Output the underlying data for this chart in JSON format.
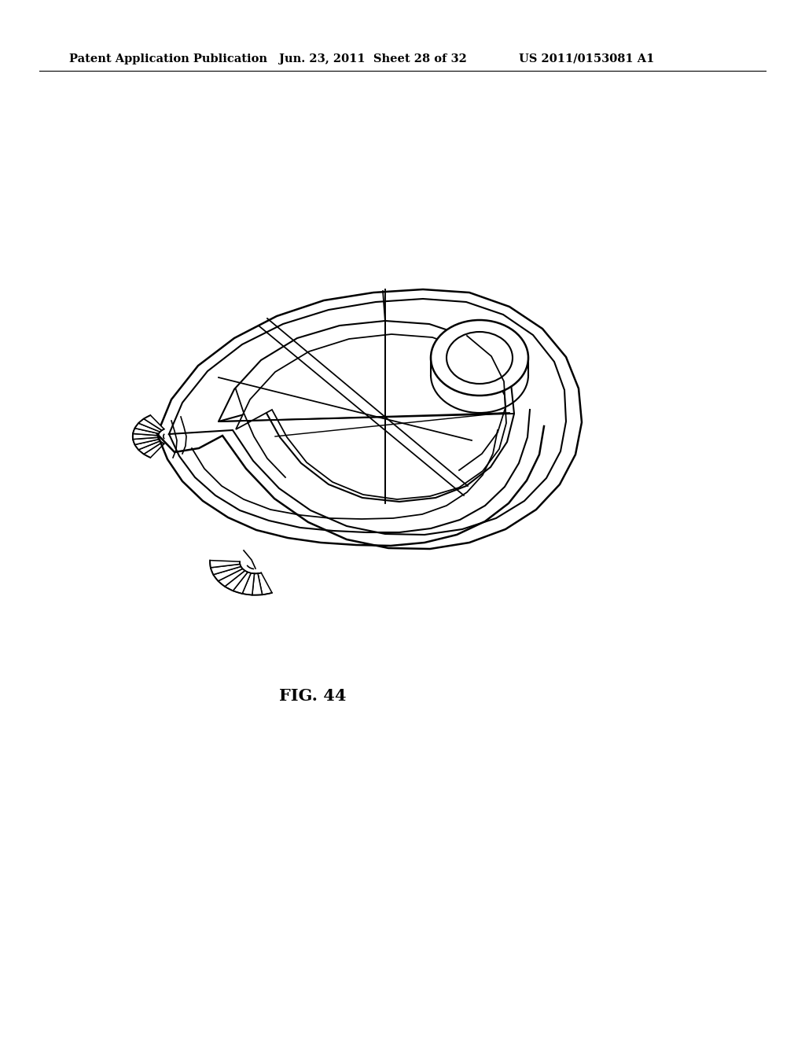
{
  "background_color": "#ffffff",
  "header_left": "Patent Application Publication",
  "header_center": "Jun. 23, 2011  Sheet 28 of 32",
  "header_right": "US 2011/0153081 A1",
  "figure_label": "FIG. 44",
  "line_color": "#000000",
  "line_width": 1.5
}
